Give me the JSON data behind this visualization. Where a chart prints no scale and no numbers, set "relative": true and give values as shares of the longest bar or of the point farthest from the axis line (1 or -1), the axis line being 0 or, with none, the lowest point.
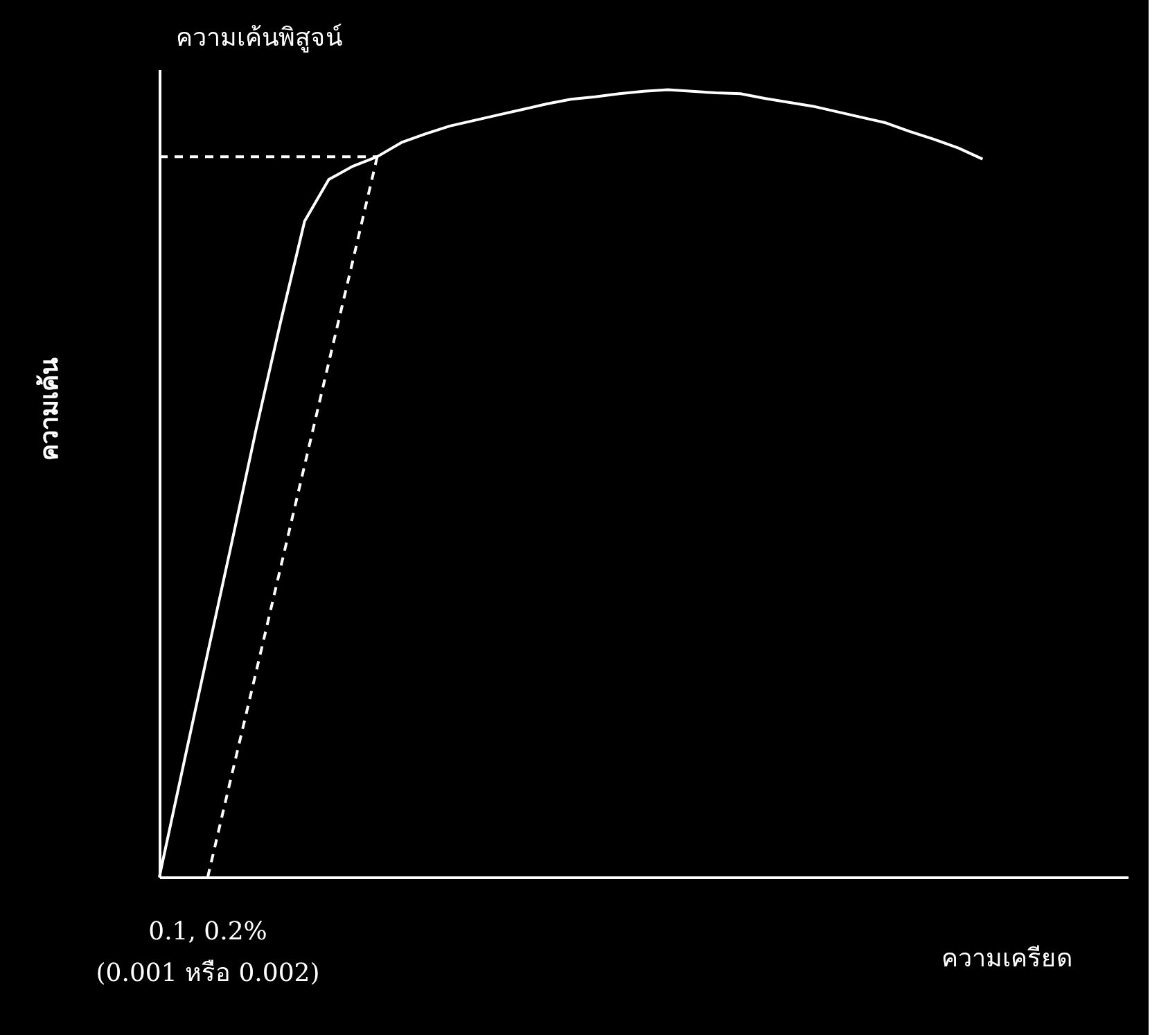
{
  "chart_data": {
    "type": "line",
    "relative": true,
    "ylabel": "ความเค้น",
    "xlabel": "ความเครียด",
    "tick_labels": false,
    "grid": false,
    "marker": "none",
    "annotations": [
      "ความเค้นพิสูจน์",
      "0.1, 0.2%",
      "(0.001 หรือ 0.002)"
    ],
    "categories": [
      null,
      null,
      null,
      null,
      null,
      null,
      null,
      null,
      null,
      null,
      null,
      null,
      null,
      null,
      null,
      null,
      null,
      null,
      null,
      null,
      null,
      null,
      null,
      null,
      null,
      null,
      null,
      null,
      null,
      null,
      null,
      null,
      null,
      null,
      null,
      null,
      null,
      null,
      null,
      null,
      null
    ],
    "series": [
      {
        "color": "#ffffff",
        "line_style": "solid",
        "values": [
          0,
          0.143,
          0.285,
          0.426,
          0.569,
          0.704,
          0.833,
          0.886,
          0.903,
          0.915,
          0.933,
          0.944,
          0.954,
          0.961,
          0.968,
          0.975,
          0.982,
          0.988,
          0.991,
          0.995,
          0.998,
          1.0,
          0.998,
          0.996,
          0.995,
          0.989,
          0.984,
          0.979,
          0.972,
          0.965,
          0.958,
          0.947,
          0.937,
          0.926,
          0.912,
          null,
          null,
          null,
          null,
          null,
          null
        ]
      },
      {
        "color": "#ffffff",
        "line_style": "dashed",
        "values": [
          null,
          null,
          0,
          0.131,
          0.261,
          0.392,
          0.523,
          0.654,
          0.784,
          0.915,
          null,
          null,
          null,
          null,
          null,
          null,
          null,
          null,
          null,
          null,
          null,
          null,
          null,
          null,
          null,
          null,
          null,
          null,
          null,
          null,
          null,
          null,
          null,
          null,
          null,
          null,
          null,
          null,
          null,
          null,
          null
        ]
      },
      {
        "color": "#ffffff",
        "line_style": "dashed",
        "values": [
          0.915,
          0.915,
          0.915,
          0.915,
          0.915,
          0.915,
          0.915,
          0.915,
          0.915,
          0.915,
          null,
          null,
          null,
          null,
          null,
          null,
          null,
          null,
          null,
          null,
          null,
          null,
          null,
          null,
          null,
          null,
          null,
          null,
          null,
          null,
          null,
          null,
          null,
          null,
          null,
          null,
          null,
          null,
          null,
          null,
          null
        ]
      }
    ]
  }
}
